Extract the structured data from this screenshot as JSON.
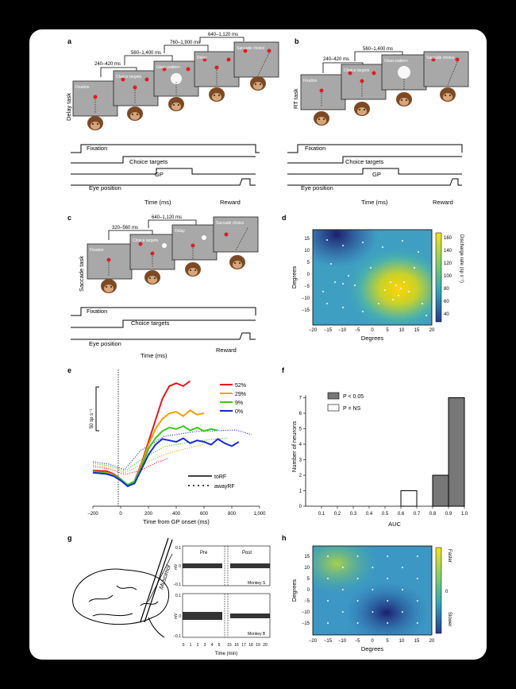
{
  "panels": {
    "a": {
      "letter": "a",
      "task": "Delay task",
      "timings": [
        "240–420 ms",
        "560–1,400 ms",
        "760–1,900 ms",
        "640–1,120 ms"
      ],
      "screens": [
        "Fixation",
        "Choice targets",
        "Glass pattern",
        "Delay",
        "Saccade choice"
      ],
      "traces": [
        "Fixation",
        "Choice targets",
        "GP",
        "Eye position"
      ],
      "time_label": "Time (ms)",
      "reward": "Reward"
    },
    "b": {
      "letter": "b",
      "task": "RT task",
      "timings": [
        "240–420 ms",
        "560–1,400 ms"
      ],
      "screens": [
        "Fixation",
        "Choice targets",
        "Glass pattern",
        "Saccade choice"
      ],
      "traces": [
        "Fixation",
        "Choice targets",
        "GP",
        "Eye position"
      ],
      "time_label": "Time (ms)",
      "reward": "Reward"
    },
    "c": {
      "letter": "c",
      "task": "Saccade task",
      "timings": [
        "320–560 ms",
        "640–1,120 ms"
      ],
      "screens": [
        "Fixation",
        "Choice targets",
        "Delay",
        "Saccade choice"
      ],
      "traces": [
        "Fixation",
        "Choice targets",
        "Eye position"
      ],
      "time_label": "Time (ms)",
      "reward": "Reward"
    },
    "d": {
      "letter": "d",
      "ylabel": "Degrees",
      "xlabel": "Degrees",
      "colorbar_label": "Discharge rate (sp s⁻¹)",
      "colorbar_ticks": [
        "160",
        "140",
        "120",
        "100",
        "80",
        "60",
        "40"
      ],
      "xticks": [
        "−20",
        "−15",
        "−10",
        "−5",
        "0",
        "5",
        "10",
        "15",
        "20"
      ],
      "yticks": [
        "15",
        "10",
        "5",
        "0",
        "−5",
        "−10",
        "−15"
      ]
    },
    "e": {
      "letter": "e",
      "scalebar": "50 sp s⁻¹",
      "xlabel": "Time from GP onset (ms)",
      "xticks": [
        "−200",
        "0",
        "200",
        "400",
        "600",
        "800",
        "1,000"
      ],
      "legend": [
        "52%",
        "29%",
        "9%",
        "0%"
      ],
      "legend_colors": [
        "#e8141b",
        "#f5a000",
        "#3ac81a",
        "#1a2ad8"
      ],
      "line_legend": [
        "toRF",
        "awayRF"
      ]
    },
    "f": {
      "letter": "f",
      "ylabel": "Number of neurons",
      "xlabel": "AUC",
      "xticks": [
        "0.1",
        "0.2",
        "0.3",
        "0.4",
        "0.5",
        "0.6",
        "0.7",
        "0.8",
        "0.9",
        "1.0"
      ],
      "yticks": [
        "0",
        "1",
        "2",
        "3",
        "4",
        "5",
        "6",
        "7"
      ],
      "legend_sig": "P < 0.05",
      "legend_ns": "P = NS"
    },
    "g": {
      "letter": "g",
      "drug": "Muscimol",
      "pre": "Pre",
      "post": "Post",
      "monkey1": "Monkey S",
      "monkey2": "Monkey B",
      "yunit": "mV",
      "yticks": [
        "0.1",
        "0",
        "−0.1"
      ],
      "xticks": [
        "0",
        "1",
        "2",
        "3",
        "4",
        "5",
        "15",
        "16",
        "17",
        "18",
        "19",
        "20"
      ],
      "xlabel": "Time (min)"
    },
    "h": {
      "letter": "h",
      "ylabel": "Degrees",
      "xlabel": "Degrees",
      "colorbar_top": "Faster",
      "colorbar_mid": "0",
      "colorbar_bottom": "Slower",
      "xticks": [
        "−20",
        "−15",
        "−10",
        "−5",
        "0",
        "5",
        "10",
        "15",
        "20"
      ],
      "yticks": [
        "15",
        "10",
        "5",
        "0",
        "−5",
        "−10",
        "−15"
      ]
    }
  },
  "chart_data": [
    {
      "type": "line",
      "panel": "e",
      "xlabel": "Time from GP onset (ms)",
      "xlim": [
        -200,
        1000
      ],
      "series": [
        {
          "name": "52%",
          "x": [
            -200,
            -100,
            -50,
            0,
            50,
            100,
            150,
            200,
            250,
            300,
            350,
            400,
            450,
            500
          ],
          "y": [
            0,
            -1,
            -5,
            -12,
            -22,
            -15,
            10,
            40,
            70,
            100,
            118,
            122,
            118,
            125
          ]
        },
        {
          "name": "29%",
          "x": [
            -200,
            -100,
            -50,
            0,
            50,
            100,
            150,
            200,
            250,
            300,
            350,
            400,
            450,
            500,
            550,
            600
          ],
          "y": [
            -2,
            -3,
            -6,
            -13,
            -22,
            -16,
            8,
            36,
            58,
            72,
            80,
            82,
            76,
            84,
            78,
            80
          ]
        },
        {
          "name": "9%",
          "x": [
            -200,
            -100,
            -50,
            0,
            50,
            100,
            150,
            200,
            250,
            300,
            350,
            400,
            450,
            500,
            550,
            600,
            650,
            700
          ],
          "y": [
            -1,
            -4,
            -7,
            -12,
            -20,
            -15,
            5,
            30,
            45,
            55,
            60,
            58,
            62,
            56,
            60,
            55,
            58,
            56
          ]
        },
        {
          "name": "0%",
          "x": [
            -200,
            -100,
            -50,
            0,
            50,
            100,
            150,
            200,
            250,
            300,
            350,
            400,
            450,
            500,
            550,
            600,
            650,
            700,
            750,
            800,
            850
          ],
          "y": [
            -3,
            -5,
            -8,
            -14,
            -22,
            -18,
            2,
            22,
            36,
            44,
            42,
            40,
            45,
            38,
            42,
            40,
            36,
            44,
            38,
            34,
            40
          ]
        }
      ]
    },
    {
      "type": "bar",
      "panel": "f",
      "xlabel": "AUC",
      "ylabel": "Number of neurons",
      "ylim": [
        0,
        7
      ],
      "series": [
        {
          "name": "P < 0.05",
          "x": [
            0.85,
            0.95
          ],
          "values": [
            2,
            7
          ]
        },
        {
          "name": "P = NS",
          "x": [
            0.65
          ],
          "values": [
            1
          ]
        }
      ]
    }
  ]
}
